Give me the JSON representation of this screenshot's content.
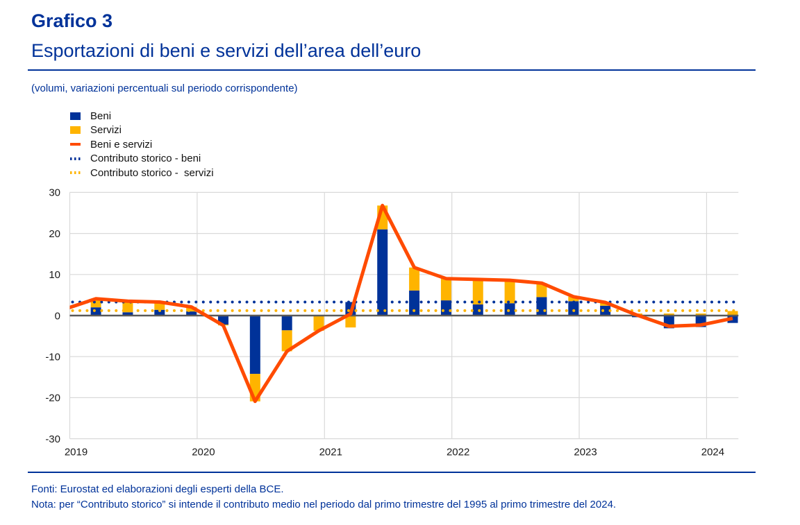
{
  "header": {
    "figure_label": "Grafico 3",
    "title": "Esportazioni di beni e servizi dell’area dell’euro",
    "units_note": "(volumi, variazioni percentuali sul periodo corrispondente)"
  },
  "colors": {
    "brand_blue": "#003299",
    "beni": "#003299",
    "servizi": "#FFB400",
    "beni_e_servizi": "#FF4B00"
  },
  "chart_data": {
    "type": "bar",
    "composition": "stacked bars with line and reference lines",
    "title": "Esportazioni di beni e servizi dell’area dell’euro",
    "subtitle": "(volumi, variazioni percentuali sul periodo corrispondente)",
    "xlabel": "",
    "ylabel": "",
    "ylim": [
      -30,
      30
    ],
    "xlim": [
      2019,
      2024.25
    ],
    "yticks": [
      30,
      20,
      10,
      0,
      -10,
      -20,
      -30
    ],
    "xticks": [
      "2019",
      "2020",
      "2021",
      "2022",
      "2023",
      "2024"
    ],
    "grid": true,
    "legend_position": "top-left",
    "x": [
      "2018 Q4",
      "2019 Q1",
      "2019 Q2",
      "2019 Q3",
      "2019 Q4",
      "2020 Q1",
      "2020 Q2",
      "2020 Q3",
      "2020 Q4",
      "2021 Q1",
      "2021 Q2",
      "2021 Q3",
      "2021 Q4",
      "2022 Q1",
      "2022 Q2",
      "2022 Q3",
      "2022 Q4",
      "2023 Q1",
      "2023 Q2",
      "2023 Q3",
      "2023 Q4",
      "2024 Q1"
    ],
    "series": [
      {
        "name": "Beni",
        "type": "bar",
        "stacked": true,
        "color": "#003299",
        "values": [
          null,
          2.0,
          0.8,
          1.4,
          1.0,
          -2.2,
          -14.2,
          -3.6,
          -0.1,
          3.3,
          21.0,
          6.1,
          3.7,
          2.7,
          3.0,
          4.5,
          3.5,
          2.4,
          -0.4,
          -3.1,
          -2.8,
          -1.8
        ]
      },
      {
        "name": "Servizi",
        "type": "bar",
        "stacked": true,
        "color": "#FFB400",
        "values": [
          null,
          2.1,
          2.7,
          1.9,
          1.1,
          -0.2,
          -6.7,
          -5.1,
          -3.6,
          -2.9,
          5.8,
          5.6,
          5.3,
          6.1,
          5.6,
          3.4,
          1.1,
          0.8,
          0.5,
          0.5,
          0.5,
          1.1
        ]
      },
      {
        "name": "Beni e servizi",
        "type": "line",
        "color": "#FF4B00",
        "values": [
          1.5,
          4.1,
          3.5,
          3.3,
          2.1,
          -2.4,
          -20.9,
          -8.7,
          -3.7,
          0.4,
          26.8,
          11.7,
          9.0,
          8.8,
          8.6,
          7.9,
          4.6,
          3.2,
          0.1,
          -2.6,
          -2.3,
          -0.7
        ]
      },
      {
        "name": "Contributo storico - beni",
        "type": "dotted-line",
        "color": "#003299",
        "value": 3.3
      },
      {
        "name": "Contributo storico -  servizi",
        "type": "dotted-line",
        "color": "#FFB400",
        "value": 1.2
      }
    ]
  },
  "footer": {
    "sources": "Fonti: Eurostat ed elaborazioni degli esperti della BCE.",
    "note": "Nota: per “Contributo storico” si intende il contributo medio nel periodo dal primo trimestre del 1995 al primo trimestre del 2024."
  }
}
